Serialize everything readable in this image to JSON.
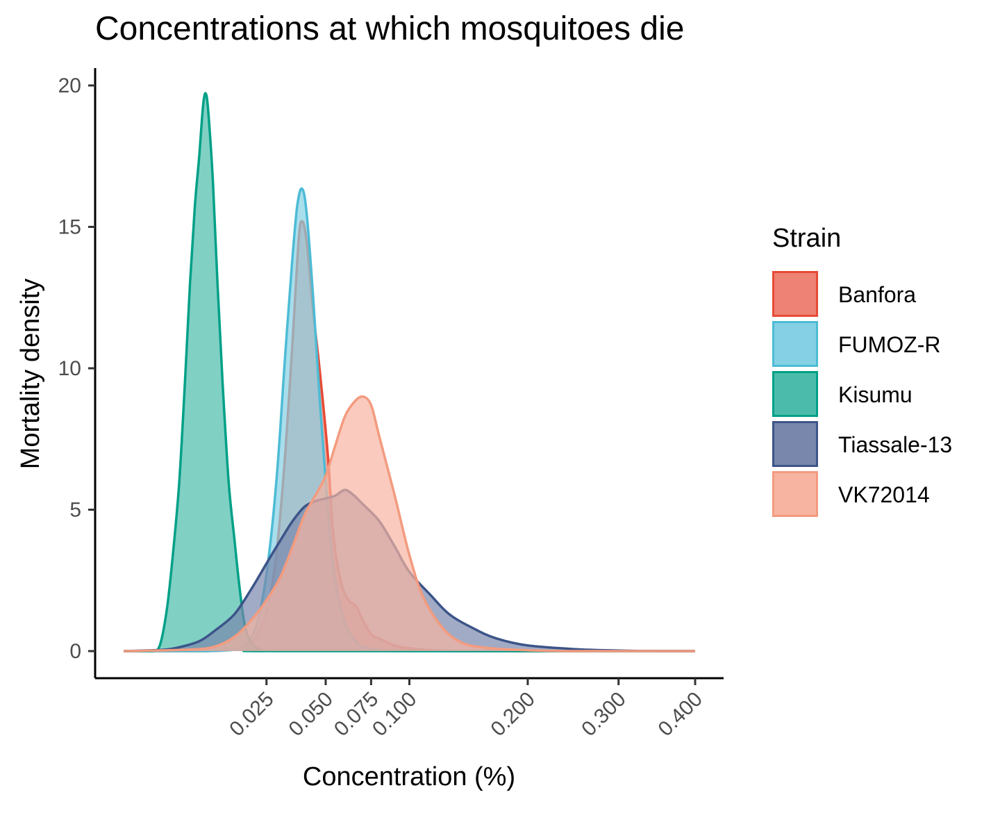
{
  "chart_data": {
    "type": "area",
    "title": "Concentrations at which mosquitoes die",
    "xlabel": "Concentration (%)",
    "ylabel": "Mortality density",
    "x_scale": "sqrt",
    "xlim": [
      0,
      0.4
    ],
    "ylim": [
      0,
      20
    ],
    "x_ticks": [
      0.025,
      0.05,
      0.075,
      0.1,
      0.2,
      0.3,
      0.4
    ],
    "x_tick_labels": [
      "0.025",
      "0.050",
      "0.075",
      "0.100",
      "0.200",
      "0.300",
      "0.400"
    ],
    "y_ticks": [
      0,
      5,
      10,
      15,
      20
    ],
    "y_tick_labels": [
      "0",
      "5",
      "10",
      "15",
      "20"
    ],
    "grid": false,
    "legend": {
      "title": "Strain",
      "position": "right"
    },
    "series": [
      {
        "name": "Banfora",
        "fill": "#ee8274",
        "stroke": "#e64b35",
        "opacity": 0.7,
        "points": [
          [
            0,
            0
          ],
          [
            0.006,
            0
          ],
          [
            0.012,
            0.02
          ],
          [
            0.018,
            0.15
          ],
          [
            0.022,
            0.6
          ],
          [
            0.026,
            1.8
          ],
          [
            0.029,
            3.8
          ],
          [
            0.032,
            7
          ],
          [
            0.035,
            11
          ],
          [
            0.0375,
            14.5
          ],
          [
            0.039,
            15.2
          ],
          [
            0.041,
            14.5
          ],
          [
            0.044,
            12
          ],
          [
            0.047,
            10
          ],
          [
            0.051,
            7
          ],
          [
            0.054,
            4
          ],
          [
            0.058,
            2.4
          ],
          [
            0.062,
            1.8
          ],
          [
            0.066,
            1.6
          ],
          [
            0.07,
            1.1
          ],
          [
            0.075,
            0.6
          ],
          [
            0.08,
            0.45
          ],
          [
            0.09,
            0.2
          ],
          [
            0.1,
            0.1
          ],
          [
            0.12,
            0.02
          ],
          [
            0.15,
            0
          ],
          [
            0.4,
            0
          ]
        ]
      },
      {
        "name": "FUMOZ-R",
        "fill": "#85d0e4",
        "stroke": "#4dbbd5",
        "opacity": 0.7,
        "points": [
          [
            0,
            0
          ],
          [
            0.006,
            0
          ],
          [
            0.012,
            0.02
          ],
          [
            0.016,
            0.1
          ],
          [
            0.02,
            0.5
          ],
          [
            0.023,
            1.5
          ],
          [
            0.026,
            3.5
          ],
          [
            0.029,
            6.5
          ],
          [
            0.032,
            10.5
          ],
          [
            0.035,
            14
          ],
          [
            0.037,
            15.8
          ],
          [
            0.039,
            16.35
          ],
          [
            0.041,
            15.5
          ],
          [
            0.044,
            12.5
          ],
          [
            0.047,
            9
          ],
          [
            0.05,
            6
          ],
          [
            0.053,
            3.5
          ],
          [
            0.056,
            2
          ],
          [
            0.06,
            1
          ],
          [
            0.065,
            0.4
          ],
          [
            0.07,
            0.15
          ],
          [
            0.08,
            0.05
          ],
          [
            0.1,
            0
          ],
          [
            0.4,
            0
          ]
        ]
      },
      {
        "name": "Kisumu",
        "fill": "#4bbcab",
        "stroke": "#00a087",
        "opacity": 0.7,
        "points": [
          [
            0,
            0
          ],
          [
            0.001,
            0
          ],
          [
            0.0016,
            0.2
          ],
          [
            0.0023,
            1.5
          ],
          [
            0.003,
            3.5
          ],
          [
            0.0038,
            6
          ],
          [
            0.0046,
            9.5
          ],
          [
            0.0054,
            13
          ],
          [
            0.0062,
            15.7
          ],
          [
            0.007,
            17.5
          ],
          [
            0.0078,
            19.4
          ],
          [
            0.0084,
            19.65
          ],
          [
            0.009,
            18.6
          ],
          [
            0.0098,
            16.5
          ],
          [
            0.0108,
            13
          ],
          [
            0.012,
            9.5
          ],
          [
            0.0135,
            6
          ],
          [
            0.015,
            4
          ],
          [
            0.0165,
            2.2
          ],
          [
            0.018,
            0.9
          ],
          [
            0.02,
            0.3
          ],
          [
            0.023,
            0.05
          ],
          [
            0.03,
            0
          ],
          [
            0.4,
            0
          ]
        ]
      },
      {
        "name": "Tiassale-13",
        "fill": "#7987ac",
        "stroke": "#3c5488",
        "opacity": 0.7,
        "points": [
          [
            0,
            0
          ],
          [
            0.002,
            0.05
          ],
          [
            0.004,
            0.15
          ],
          [
            0.007,
            0.35
          ],
          [
            0.01,
            0.7
          ],
          [
            0.015,
            1.3
          ],
          [
            0.02,
            2.2
          ],
          [
            0.025,
            3.1
          ],
          [
            0.03,
            3.9
          ],
          [
            0.035,
            4.6
          ],
          [
            0.04,
            5.1
          ],
          [
            0.045,
            5.3
          ],
          [
            0.05,
            5.4
          ],
          [
            0.055,
            5.5
          ],
          [
            0.06,
            5.7
          ],
          [
            0.065,
            5.5
          ],
          [
            0.07,
            5.2
          ],
          [
            0.08,
            4.6
          ],
          [
            0.09,
            3.7
          ],
          [
            0.1,
            2.8
          ],
          [
            0.115,
            2
          ],
          [
            0.13,
            1.3
          ],
          [
            0.15,
            0.8
          ],
          [
            0.17,
            0.45
          ],
          [
            0.2,
            0.2
          ],
          [
            0.25,
            0.07
          ],
          [
            0.3,
            0.02
          ],
          [
            0.35,
            0
          ],
          [
            0.4,
            0
          ]
        ]
      },
      {
        "name": "VK72014",
        "fill": "#f6b4a1",
        "stroke": "#f39b7f",
        "opacity": 0.7,
        "points": [
          [
            0,
            0
          ],
          [
            0.005,
            0.05
          ],
          [
            0.01,
            0.15
          ],
          [
            0.015,
            0.5
          ],
          [
            0.02,
            1.1
          ],
          [
            0.025,
            1.8
          ],
          [
            0.03,
            2.6
          ],
          [
            0.035,
            3.7
          ],
          [
            0.04,
            4.8
          ],
          [
            0.045,
            5.5
          ],
          [
            0.05,
            6.2
          ],
          [
            0.055,
            7.3
          ],
          [
            0.06,
            8.3
          ],
          [
            0.065,
            8.8
          ],
          [
            0.07,
            9
          ],
          [
            0.075,
            8.7
          ],
          [
            0.08,
            7.6
          ],
          [
            0.09,
            5.5
          ],
          [
            0.1,
            3.4
          ],
          [
            0.11,
            1.9
          ],
          [
            0.125,
            0.8
          ],
          [
            0.14,
            0.3
          ],
          [
            0.16,
            0.12
          ],
          [
            0.2,
            0.03
          ],
          [
            0.25,
            0
          ],
          [
            0.4,
            0
          ]
        ]
      }
    ]
  }
}
